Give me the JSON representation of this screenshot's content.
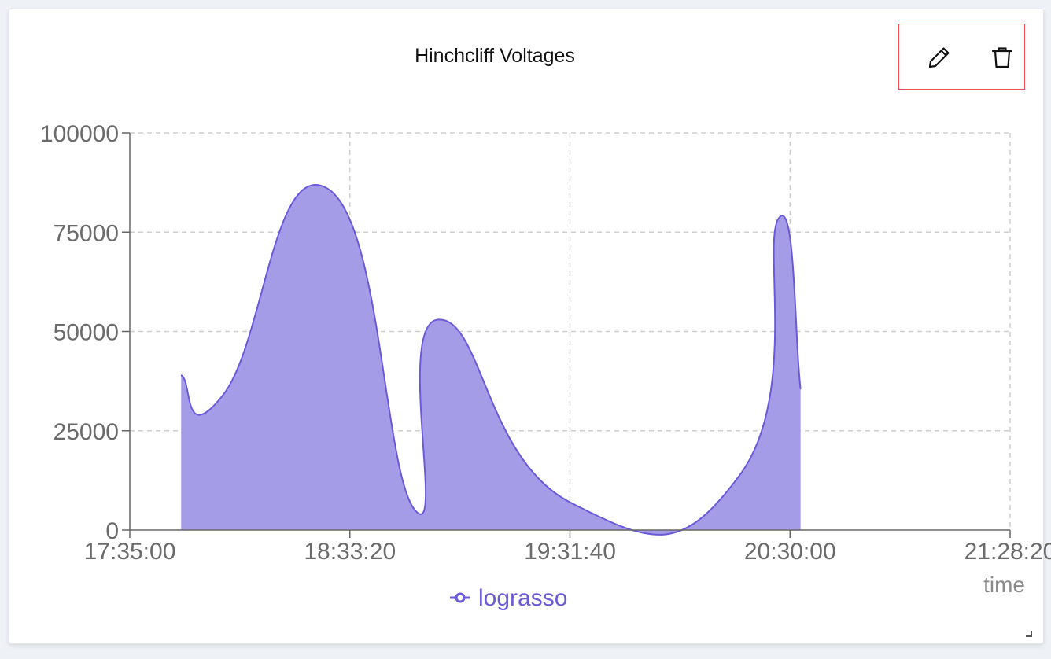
{
  "panel": {
    "title": "Hinchcliff Voltages",
    "edit_icon": "pencil-icon",
    "delete_icon": "trash-icon"
  },
  "colors": {
    "series": "#6a5ad8",
    "fill": "#a59ce8",
    "grid": "#cfcfcf",
    "axis": "#666666",
    "toolbar_border": "#f04a55"
  },
  "chart_data": {
    "type": "area",
    "xlabel": "time",
    "ylabel": "",
    "xlim": [
      "17:35:00",
      "21:28:20"
    ],
    "ylim": [
      0,
      100000
    ],
    "x_ticks": [
      "17:35:00",
      "18:33:20",
      "19:31:40",
      "20:30:00",
      "21:28:20"
    ],
    "y_ticks": [
      0,
      25000,
      50000,
      75000,
      100000
    ],
    "grid": true,
    "legend_position": "bottom-center",
    "series": [
      {
        "name": "lograsso",
        "x": [
          "17:48:36",
          "17:59:43",
          "18:27:24",
          "18:50:36",
          "18:56:48",
          "19:31:40",
          "20:16:48",
          "20:27:00",
          "20:32:48"
        ],
        "values": [
          39000,
          34000,
          86000,
          5000,
          53000,
          7000,
          14000,
          78500,
          35500
        ]
      }
    ]
  }
}
